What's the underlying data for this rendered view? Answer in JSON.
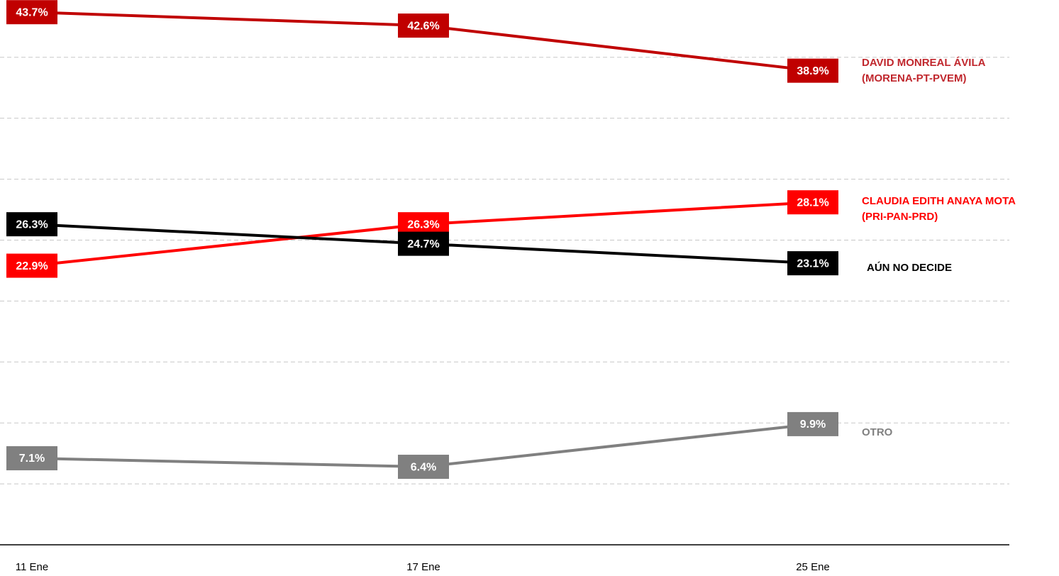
{
  "chart_data": {
    "type": "line",
    "categories": [
      "11 Ene",
      "17 Ene",
      "25 Ene"
    ],
    "ylim": [
      0,
      44.7
    ],
    "yticks": [
      0,
      5,
      10,
      15,
      20,
      25,
      30,
      35,
      40
    ],
    "grid": true,
    "series": [
      {
        "name": "DAVID MONREAL ÁVILA\n (MORENA-PT-PVEM)",
        "color": "#c00000",
        "values": [
          43.7,
          42.6,
          38.9
        ],
        "value_labels": [
          "43.7%",
          "42.6%",
          "38.9%"
        ]
      },
      {
        "name": "CLAUDIA EDITH ANAYA MOTA\n(PRI-PAN-PRD)",
        "color": "#ff0000",
        "values": [
          22.9,
          26.3,
          28.1
        ],
        "value_labels": [
          "22.9%",
          "26.3%",
          "28.1%"
        ]
      },
      {
        "name": "AÚN NO DECIDE",
        "color": "#000000",
        "values": [
          26.3,
          24.7,
          23.1
        ],
        "value_labels": [
          "26.3%",
          "24.7%",
          "23.1%"
        ]
      },
      {
        "name": "OTRO",
        "color": "#808080",
        "values": [
          7.1,
          6.4,
          9.9
        ],
        "value_labels": [
          "7.1%",
          "6.4%",
          "9.9%"
        ]
      }
    ]
  }
}
